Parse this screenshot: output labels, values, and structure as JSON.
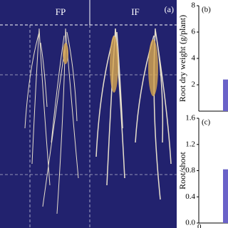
{
  "photo": {
    "labels": [
      "FP",
      "IF"
    ],
    "panel": "(a)"
  },
  "chart_data": [
    {
      "type": "bar",
      "panel": "(b)",
      "y_label": "Root dry weight (g/plant)",
      "categories": [
        null
      ],
      "values": [
        2.4
      ],
      "color": "#6a62c8",
      "ylim": [
        0,
        8
      ],
      "yticks": [
        2,
        4,
        6,
        8
      ]
    },
    {
      "type": "bar",
      "panel": "(c)",
      "y_label": "Root/shoot",
      "categories": [
        "0"
      ],
      "values": [
        0.82
      ],
      "color": "#6a62c8",
      "ylim": [
        0,
        1.6
      ],
      "yticks": [
        {
          "value": 0,
          "label": "0.0"
        },
        0.4,
        0.8,
        1.2,
        1.6
      ]
    }
  ]
}
